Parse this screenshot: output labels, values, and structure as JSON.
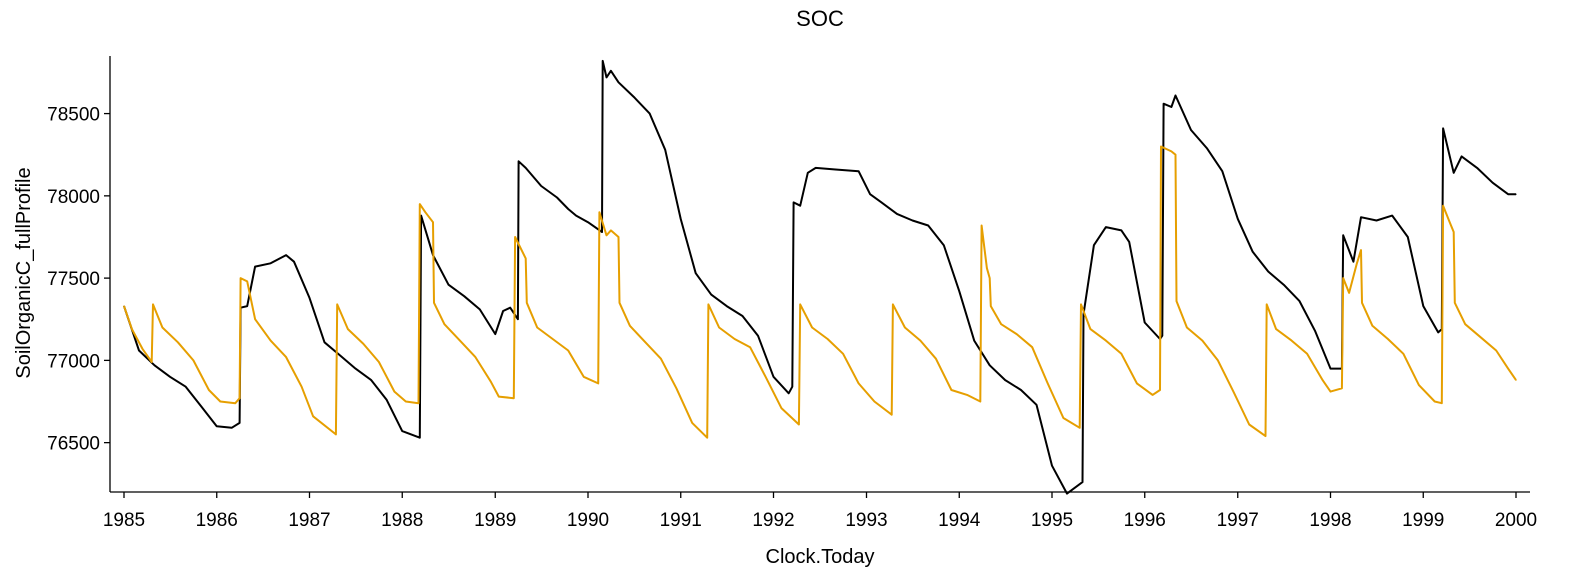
{
  "chart_data": {
    "type": "line",
    "title": "SOC",
    "xlabel": "Clock.Today",
    "ylabel": "SoilOrganicC_fullProfile",
    "xlim": [
      "1985-01-01",
      "2000-01-01"
    ],
    "ylim": [
      76200,
      78850
    ],
    "x_ticks": [
      "1985",
      "1986",
      "1987",
      "1988",
      "1989",
      "1990",
      "1991",
      "1992",
      "1993",
      "1994",
      "1995",
      "1996",
      "1997",
      "1998",
      "1999",
      "2000"
    ],
    "y_ticks": [
      76500,
      77000,
      77500,
      78000,
      78500
    ],
    "grid": false,
    "legend": "none",
    "series": [
      {
        "color": "#000000",
        "points": [
          [
            "1985-01-01",
            77330
          ],
          [
            "1985-03-01",
            77060
          ],
          [
            "1985-05-01",
            76970
          ],
          [
            "1985-07-01",
            76900
          ],
          [
            "1985-09-01",
            76840
          ],
          [
            "1985-11-01",
            76720
          ],
          [
            "1986-01-01",
            76600
          ],
          [
            "1986-03-01",
            76590
          ],
          [
            "1986-04-01",
            76620
          ],
          [
            "1986-04-05",
            77320
          ],
          [
            "1986-05-01",
            77330
          ],
          [
            "1986-06-01",
            77570
          ],
          [
            "1986-08-01",
            77590
          ],
          [
            "1986-10-01",
            77640
          ],
          [
            "1986-11-01",
            77600
          ],
          [
            "1987-01-01",
            77380
          ],
          [
            "1987-03-01",
            77110
          ],
          [
            "1987-05-01",
            77030
          ],
          [
            "1987-07-01",
            76950
          ],
          [
            "1987-09-01",
            76880
          ],
          [
            "1987-11-01",
            76760
          ],
          [
            "1988-01-01",
            76570
          ],
          [
            "1988-03-10",
            76530
          ],
          [
            "1988-03-15",
            77880
          ],
          [
            "1988-05-01",
            77640
          ],
          [
            "1988-07-01",
            77460
          ],
          [
            "1988-09-01",
            77390
          ],
          [
            "1988-11-01",
            77310
          ],
          [
            "1989-01-01",
            77160
          ],
          [
            "1989-02-01",
            77300
          ],
          [
            "1989-03-01",
            77320
          ],
          [
            "1989-03-31",
            77250
          ],
          [
            "1989-04-03",
            78210
          ],
          [
            "1989-05-01",
            78170
          ],
          [
            "1989-07-01",
            78060
          ],
          [
            "1989-09-01",
            77990
          ],
          [
            "1989-10-15",
            77920
          ],
          [
            "1989-11-15",
            77880
          ],
          [
            "1990-01-01",
            77840
          ],
          [
            "1990-02-25",
            77780
          ],
          [
            "1990-02-28",
            78820
          ],
          [
            "1990-03-15",
            78720
          ],
          [
            "1990-04-01",
            78760
          ],
          [
            "1990-05-01",
            78690
          ],
          [
            "1990-07-01",
            78600
          ],
          [
            "1990-09-01",
            78500
          ],
          [
            "1990-11-01",
            78280
          ],
          [
            "1991-01-01",
            77860
          ],
          [
            "1991-03-01",
            77530
          ],
          [
            "1991-05-01",
            77400
          ],
          [
            "1991-07-01",
            77330
          ],
          [
            "1991-09-01",
            77270
          ],
          [
            "1991-11-01",
            77150
          ],
          [
            "1992-01-01",
            76900
          ],
          [
            "1992-03-01",
            76800
          ],
          [
            "1992-03-15",
            76840
          ],
          [
            "1992-03-20",
            77960
          ],
          [
            "1992-04-15",
            77940
          ],
          [
            "1992-05-15",
            78140
          ],
          [
            "1992-06-15",
            78170
          ],
          [
            "1992-09-01",
            78160
          ],
          [
            "1992-12-01",
            78150
          ],
          [
            "1993-01-15",
            78010
          ],
          [
            "1993-03-01",
            77960
          ],
          [
            "1993-05-01",
            77890
          ],
          [
            "1993-07-01",
            77850
          ],
          [
            "1993-09-01",
            77820
          ],
          [
            "1993-11-01",
            77700
          ],
          [
            "1994-01-01",
            77420
          ],
          [
            "1994-03-01",
            77120
          ],
          [
            "1994-05-01",
            76970
          ],
          [
            "1994-07-01",
            76880
          ],
          [
            "1994-09-01",
            76820
          ],
          [
            "1994-11-01",
            76730
          ],
          [
            "1995-01-01",
            76360
          ],
          [
            "1995-03-01",
            76190
          ],
          [
            "1995-05-01",
            76260
          ],
          [
            "1995-05-05",
            77280
          ],
          [
            "1995-06-15",
            77700
          ],
          [
            "1995-08-01",
            77810
          ],
          [
            "1995-10-01",
            77790
          ],
          [
            "1995-11-01",
            77720
          ],
          [
            "1996-01-01",
            77230
          ],
          [
            "1996-03-01",
            77130
          ],
          [
            "1996-03-10",
            77150
          ],
          [
            "1996-03-15",
            78560
          ],
          [
            "1996-04-15",
            78540
          ],
          [
            "1996-05-01",
            78610
          ],
          [
            "1996-07-01",
            78400
          ],
          [
            "1996-09-01",
            78290
          ],
          [
            "1996-11-01",
            78150
          ],
          [
            "1997-01-01",
            77860
          ],
          [
            "1997-03-01",
            77660
          ],
          [
            "1997-05-01",
            77540
          ],
          [
            "1997-07-01",
            77460
          ],
          [
            "1997-09-01",
            77360
          ],
          [
            "1997-11-01",
            77180
          ],
          [
            "1998-01-01",
            76950
          ],
          [
            "1998-02-15",
            76950
          ],
          [
            "1998-02-20",
            77760
          ],
          [
            "1998-04-01",
            77600
          ],
          [
            "1998-05-01",
            77870
          ],
          [
            "1998-07-01",
            77850
          ],
          [
            "1998-09-01",
            77880
          ],
          [
            "1998-11-01",
            77750
          ],
          [
            "1999-01-01",
            77330
          ],
          [
            "1999-03-01",
            77170
          ],
          [
            "1999-03-15",
            77190
          ],
          [
            "1999-03-20",
            78410
          ],
          [
            "1999-05-01",
            78140
          ],
          [
            "1999-06-01",
            78240
          ],
          [
            "1999-08-01",
            78170
          ],
          [
            "1999-10-01",
            78080
          ],
          [
            "1999-12-01",
            78010
          ],
          [
            "2000-01-01",
            78010
          ]
        ]
      },
      {
        "color": "#E69F00",
        "points": [
          [
            "1985-01-01",
            77330
          ],
          [
            "1985-02-01",
            77190
          ],
          [
            "1985-03-15",
            77070
          ],
          [
            "1985-04-20",
            76990
          ],
          [
            "1985-04-25",
            77340
          ],
          [
            "1985-06-01",
            77200
          ],
          [
            "1985-08-01",
            77110
          ],
          [
            "1985-10-01",
            77000
          ],
          [
            "1985-12-01",
            76820
          ],
          [
            "1986-01-15",
            76750
          ],
          [
            "1986-03-15",
            76740
          ],
          [
            "1986-04-01",
            76770
          ],
          [
            "1986-04-05",
            77500
          ],
          [
            "1986-05-01",
            77480
          ],
          [
            "1986-06-01",
            77250
          ],
          [
            "1986-08-01",
            77120
          ],
          [
            "1986-10-01",
            77020
          ],
          [
            "1986-12-01",
            76840
          ],
          [
            "1987-01-15",
            76660
          ],
          [
            "1987-04-15",
            76550
          ],
          [
            "1987-04-20",
            77340
          ],
          [
            "1987-06-01",
            77190
          ],
          [
            "1987-08-01",
            77100
          ],
          [
            "1987-10-01",
            76990
          ],
          [
            "1987-12-01",
            76810
          ],
          [
            "1988-01-15",
            76750
          ],
          [
            "1988-03-05",
            76740
          ],
          [
            "1988-03-10",
            77950
          ],
          [
            "1988-04-01",
            77900
          ],
          [
            "1988-05-01",
            77840
          ],
          [
            "1988-05-05",
            77350
          ],
          [
            "1988-06-15",
            77220
          ],
          [
            "1988-08-15",
            77120
          ],
          [
            "1988-10-15",
            77020
          ],
          [
            "1988-12-15",
            76870
          ],
          [
            "1989-01-15",
            76780
          ],
          [
            "1989-03-15",
            76770
          ],
          [
            "1989-03-20",
            77750
          ],
          [
            "1989-05-01",
            77620
          ],
          [
            "1989-05-05",
            77350
          ],
          [
            "1989-06-15",
            77200
          ],
          [
            "1989-08-15",
            77130
          ],
          [
            "1989-10-15",
            77060
          ],
          [
            "1989-12-15",
            76900
          ],
          [
            "1990-02-10",
            76860
          ],
          [
            "1990-02-15",
            77900
          ],
          [
            "1990-03-15",
            77760
          ],
          [
            "1990-04-01",
            77790
          ],
          [
            "1990-05-01",
            77750
          ],
          [
            "1990-05-05",
            77350
          ],
          [
            "1990-06-15",
            77210
          ],
          [
            "1990-08-15",
            77110
          ],
          [
            "1990-10-15",
            77010
          ],
          [
            "1990-12-15",
            76830
          ],
          [
            "1991-02-15",
            76620
          ],
          [
            "1991-04-15",
            76530
          ],
          [
            "1991-04-20",
            77340
          ],
          [
            "1991-06-01",
            77200
          ],
          [
            "1991-08-01",
            77130
          ],
          [
            "1991-10-01",
            77080
          ],
          [
            "1991-12-01",
            76900
          ],
          [
            "1992-02-01",
            76710
          ],
          [
            "1992-04-10",
            76610
          ],
          [
            "1992-04-15",
            77340
          ],
          [
            "1992-06-01",
            77200
          ],
          [
            "1992-08-01",
            77130
          ],
          [
            "1992-10-01",
            77040
          ],
          [
            "1992-12-01",
            76860
          ],
          [
            "1993-02-01",
            76750
          ],
          [
            "1993-04-10",
            76670
          ],
          [
            "1993-04-15",
            77340
          ],
          [
            "1993-06-01",
            77200
          ],
          [
            "1993-08-01",
            77120
          ],
          [
            "1993-10-01",
            77010
          ],
          [
            "1993-12-01",
            76820
          ],
          [
            "1994-02-01",
            76790
          ],
          [
            "1994-03-25",
            76750
          ],
          [
            "1994-03-30",
            77820
          ],
          [
            "1994-04-20",
            77560
          ],
          [
            "1994-05-01",
            77500
          ],
          [
            "1994-05-05",
            77330
          ],
          [
            "1994-06-15",
            77220
          ],
          [
            "1994-08-15",
            77160
          ],
          [
            "1994-10-15",
            77080
          ],
          [
            "1994-12-15",
            76860
          ],
          [
            "1995-02-15",
            76650
          ],
          [
            "1995-04-20",
            76590
          ],
          [
            "1995-04-25",
            77340
          ],
          [
            "1995-06-01",
            77190
          ],
          [
            "1995-08-01",
            77120
          ],
          [
            "1995-10-01",
            77040
          ],
          [
            "1995-12-01",
            76860
          ],
          [
            "1996-02-01",
            76790
          ],
          [
            "1996-03-01",
            76820
          ],
          [
            "1996-03-05",
            78300
          ],
          [
            "1996-04-15",
            78270
          ],
          [
            "1996-05-01",
            78250
          ],
          [
            "1996-05-05",
            77360
          ],
          [
            "1996-06-15",
            77200
          ],
          [
            "1996-08-15",
            77120
          ],
          [
            "1996-10-15",
            77000
          ],
          [
            "1996-12-15",
            76810
          ],
          [
            "1997-02-15",
            76610
          ],
          [
            "1997-04-20",
            76540
          ],
          [
            "1997-04-25",
            77340
          ],
          [
            "1997-06-01",
            77190
          ],
          [
            "1997-08-01",
            77120
          ],
          [
            "1997-10-01",
            77040
          ],
          [
            "1997-12-01",
            76880
          ],
          [
            "1998-01-01",
            76810
          ],
          [
            "1998-02-15",
            76830
          ],
          [
            "1998-02-20",
            77500
          ],
          [
            "1998-03-15",
            77410
          ],
          [
            "1998-04-15",
            77590
          ],
          [
            "1998-05-01",
            77670
          ],
          [
            "1998-05-05",
            77350
          ],
          [
            "1998-06-15",
            77210
          ],
          [
            "1998-08-15",
            77130
          ],
          [
            "1998-10-15",
            77040
          ],
          [
            "1998-12-15",
            76850
          ],
          [
            "1999-02-15",
            76750
          ],
          [
            "1999-03-15",
            76740
          ],
          [
            "1999-03-20",
            77940
          ],
          [
            "1999-04-15",
            77840
          ],
          [
            "1999-05-01",
            77780
          ],
          [
            "1999-05-05",
            77350
          ],
          [
            "1999-06-15",
            77220
          ],
          [
            "1999-08-15",
            77140
          ],
          [
            "1999-10-15",
            77060
          ],
          [
            "1999-12-01",
            76950
          ],
          [
            "2000-01-01",
            76880
          ]
        ]
      }
    ]
  }
}
